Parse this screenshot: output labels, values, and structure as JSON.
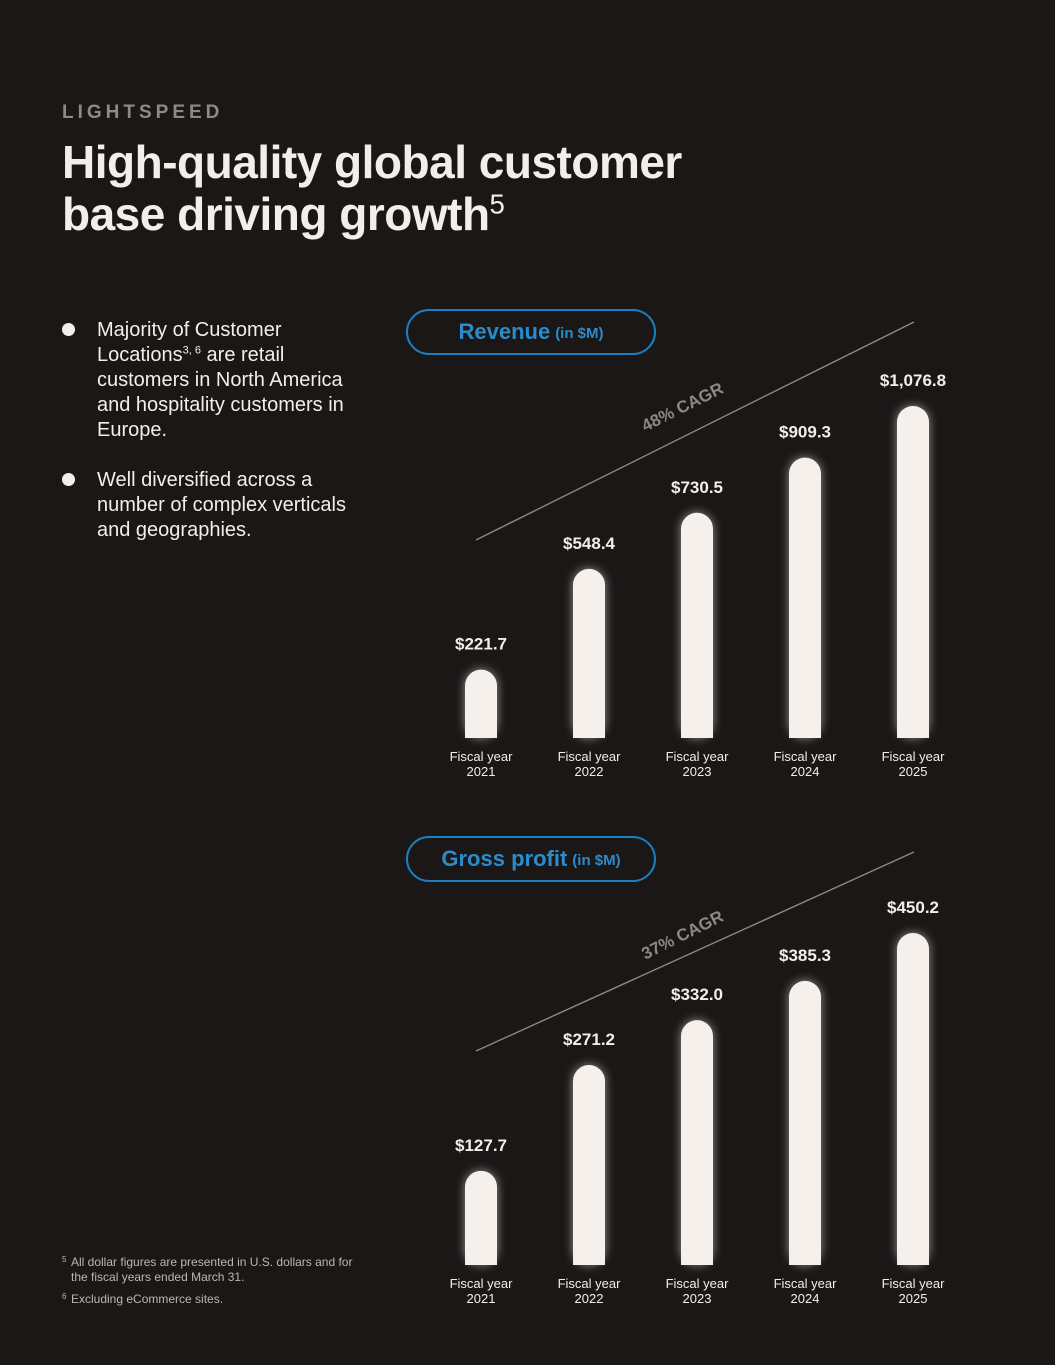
{
  "brand": "LIGHTSPEED",
  "title": {
    "line1": "High-quality global customer",
    "line2": "base driving growth",
    "footnote_ref": "5"
  },
  "bullets": [
    {
      "pre": "Majority of Customer Locations",
      "sup": "3, 6",
      "post": " are retail customers in North America and hospitality customers in Europe."
    },
    {
      "pre": "Well diversified across a number of complex verticals and geographies.",
      "sup": "",
      "post": ""
    }
  ],
  "footnotes": [
    {
      "mark": "5",
      "text": "All dollar figures are presented in U.S. dollars and for the fiscal years ended March 31."
    },
    {
      "mark": "6",
      "text": "Excluding eCommerce sites."
    }
  ],
  "colors": {
    "accent": "#1d7fbf",
    "bar": "#f6f0ed",
    "background": "#1a1716",
    "cagr": "#8d8886"
  },
  "chart_data": [
    {
      "type": "bar",
      "title": "Revenue",
      "unit": "(in $M)",
      "cagr_label": "48% CAGR",
      "categories": [
        "Fiscal year 2021",
        "Fiscal year 2022",
        "Fiscal year 2023",
        "Fiscal year 2024",
        "Fiscal year 2025"
      ],
      "category_lines": [
        [
          "Fiscal year",
          "2021"
        ],
        [
          "Fiscal year",
          "2022"
        ],
        [
          "Fiscal year",
          "2023"
        ],
        [
          "Fiscal year",
          "2024"
        ],
        [
          "Fiscal year",
          "2025"
        ]
      ],
      "values": [
        221.7,
        548.4,
        730.5,
        909.3,
        1076.8
      ],
      "value_labels": [
        "$221.7",
        "$548.4",
        "$730.5",
        "$909.3",
        "$1,076.8"
      ],
      "ylim": [
        0,
        1160
      ],
      "xlabel": "",
      "ylabel": ""
    },
    {
      "type": "bar",
      "title": "Gross profit",
      "unit": "(in $M)",
      "cagr_label": "37% CAGR",
      "categories": [
        "Fiscal year 2021",
        "Fiscal year 2022",
        "Fiscal year 2023",
        "Fiscal year 2024",
        "Fiscal year 2025"
      ],
      "category_lines": [
        [
          "Fiscal year",
          "2021"
        ],
        [
          "Fiscal year",
          "2022"
        ],
        [
          "Fiscal year",
          "2023"
        ],
        [
          "Fiscal year",
          "2024"
        ],
        [
          "Fiscal year",
          "2025"
        ]
      ],
      "values": [
        127.7,
        271.2,
        332.0,
        385.3,
        450.2
      ],
      "value_labels": [
        "$127.7",
        "$271.2",
        "$332.0",
        "$385.3",
        "$450.2"
      ],
      "ylim": [
        0,
        485
      ],
      "xlabel": "",
      "ylabel": ""
    }
  ]
}
